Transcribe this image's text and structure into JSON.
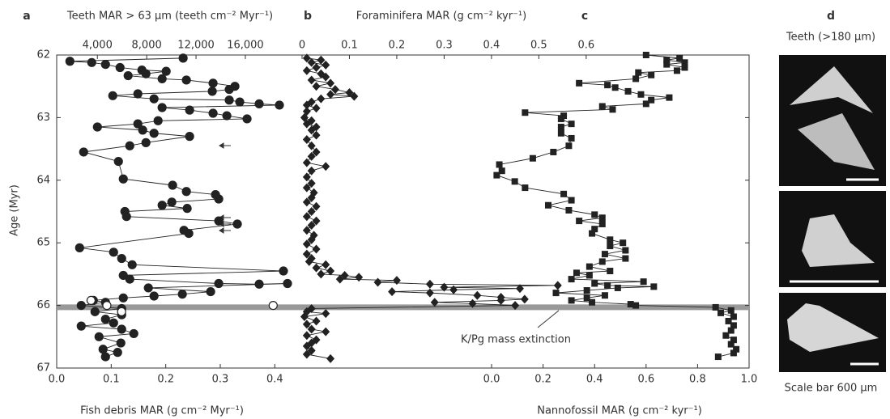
{
  "chart_data": {
    "type": "scatter",
    "ylabel": "Age (Myr)",
    "ylim": [
      62,
      67
    ],
    "yticks": [
      62,
      63,
      64,
      65,
      66,
      67
    ],
    "panel_labels": [
      "a",
      "b",
      "c",
      "d"
    ],
    "x_axes": [
      {
        "label": "Teeth MAR > 63 μm (teeth cm⁻² Myr⁻¹)",
        "position": "top",
        "xlim": [
          700,
          20600
        ],
        "xticks": [
          {
            "value": 4000,
            "label": "4,000"
          },
          {
            "value": 8000,
            "label": "8,000"
          },
          {
            "value": 12000,
            "label": "12,000"
          },
          {
            "value": 16000,
            "label": "16,000"
          }
        ]
      },
      {
        "label": "Fish debris MAR (g cm⁻² Myr⁻¹)",
        "position": "bottom",
        "xlim": [
          0,
          0.45
        ],
        "xticks": [
          {
            "value": 0,
            "label": "0.0"
          },
          0.1,
          0.2,
          0.3,
          0.4
        ]
      },
      {
        "label": "Foraminifera MAR (g cm⁻² kyr⁻¹)",
        "position": "top",
        "xlim": [
          0,
          0.944
        ],
        "xticks": [
          0,
          0.1,
          0.2,
          0.3,
          0.4,
          0.5,
          0.6
        ]
      },
      {
        "label": "Nannofossil MAR (g cm⁻² kyr⁻¹)",
        "position": "bottom",
        "xlim": [
          -0.736,
          1.0
        ],
        "xticks": [
          {
            "value": 0,
            "label": "0.0"
          },
          0.2,
          0.4,
          0.6,
          0.8,
          {
            "value": 1,
            "label": "1.0"
          }
        ]
      }
    ],
    "series": [
      {
        "x_axis": 0,
        "marker": "circle",
        "color": "#222",
        "line": true,
        "ages": [
          62.05,
          62.1,
          62.12,
          62.15,
          62.2,
          62.24,
          62.26,
          62.3,
          62.33,
          62.38,
          62.4,
          62.45,
          62.5,
          62.55,
          62.58,
          62.62,
          62.65,
          62.7,
          62.72,
          62.75,
          62.78,
          62.8,
          62.84,
          62.88,
          62.93,
          62.97,
          63.02,
          63.05,
          63.1,
          63.15,
          63.2,
          63.25,
          63.3,
          63.4,
          63.45,
          63.55,
          63.7,
          63.98,
          64.08,
          64.18,
          64.23,
          64.3,
          64.35,
          64.4,
          64.45,
          64.5,
          64.58,
          64.65,
          64.7,
          64.8,
          64.85,
          65.08,
          65.15,
          65.25,
          65.35,
          65.45,
          65.52,
          65.58,
          65.65,
          65.66,
          65.65,
          65.72,
          65.78,
          65.82,
          65.85,
          65.88,
          65.92,
          65.95,
          66.0,
          66.05,
          66.1,
          66.15,
          66.22,
          66.28,
          66.33,
          66.38,
          66.45,
          66.5,
          66.6,
          66.7,
          66.75,
          66.82
        ],
        "values": [
          10955,
          1771,
          3542,
          4658,
          5838,
          7610,
          9578,
          7938,
          6494,
          9250,
          11218,
          13382,
          15154,
          14694,
          13317,
          7282,
          5248,
          8594,
          14694,
          15547,
          17122,
          18762,
          9250,
          11480,
          13382,
          14498,
          16138,
          8922,
          7282,
          4002,
          7675,
          8594,
          11480,
          7938,
          6626,
          2886,
          5707,
          6101,
          10102,
          11218,
          13579,
          13842,
          10037,
          9250,
          11283,
          6232,
          6363,
          13842,
          15350,
          11021,
          11414,
          2558,
          5314,
          5970,
          6822,
          19090,
          6101,
          6626,
          13842,
          17122,
          19418,
          8134,
          13186,
          10890,
          8594,
          6101,
          3674,
          4658,
          2690,
          5970,
          3805,
          5970,
          4658,
          5314,
          2690,
          5970,
          6954,
          4133,
          5904,
          4461,
          5642,
          4658
        ]
      },
      {
        "x_axis": 1,
        "marker": "circle",
        "color": "#fff",
        "line": false,
        "ages": [
          65.92,
          66.0,
          66.1,
          66.0
        ],
        "values": [
          0.063,
          0.092,
          0.119,
          0.397
        ]
      },
      {
        "x_axis": 2,
        "marker": "diamond",
        "color": "#222",
        "line": true,
        "ages": [
          62.05,
          62.08,
          62.12,
          62.16,
          62.2,
          62.25,
          62.3,
          62.35,
          62.4,
          62.45,
          62.5,
          62.55,
          62.6,
          62.63,
          62.66,
          62.7,
          62.75,
          62.8,
          62.85,
          62.9,
          63.0,
          63.05,
          63.1,
          63.15,
          63.2,
          63.28,
          63.35,
          63.45,
          63.55,
          63.62,
          63.72,
          63.78,
          63.85,
          63.95,
          64.05,
          64.12,
          64.2,
          64.28,
          64.35,
          64.42,
          64.5,
          64.58,
          64.65,
          64.72,
          64.8,
          64.88,
          64.95,
          65.02,
          65.1,
          65.18,
          65.25,
          65.3,
          65.35,
          65.4,
          65.45,
          65.5,
          65.52,
          65.55,
          65.58,
          65.6,
          65.63,
          65.66,
          65.68,
          65.71,
          65.73,
          65.75,
          65.78,
          65.8,
          65.84,
          65.87,
          65.9,
          65.92,
          65.95,
          65.97,
          66.0,
          66.05,
          66.1,
          66.13,
          66.18,
          66.25,
          66.3,
          66.38,
          66.42,
          66.48,
          66.55,
          66.6,
          66.65,
          66.72,
          66.78,
          66.85
        ],
        "values": [
          0.01,
          0.04,
          0.02,
          0.05,
          0.03,
          0.01,
          0.04,
          0.05,
          0.02,
          0.06,
          0.03,
          0.07,
          0.1,
          0.06,
          0.11,
          0.04,
          0.02,
          0.01,
          0.03,
          0.01,
          0.005,
          0.02,
          0.01,
          0.03,
          0.02,
          0.03,
          0.01,
          0.02,
          0.03,
          0.02,
          0.01,
          0.05,
          0.02,
          0.01,
          0.02,
          0.01,
          0.025,
          0.02,
          0.01,
          0.03,
          0.02,
          0.01,
          0.03,
          0.02,
          0.01,
          0.025,
          0.02,
          0.01,
          0.03,
          0.01,
          0.02,
          0.015,
          0.05,
          0.03,
          0.06,
          0.04,
          0.09,
          0.12,
          0.08,
          0.2,
          0.16,
          0.27,
          0.54,
          0.3,
          0.46,
          0.32,
          0.19,
          0.27,
          0.37,
          0.42,
          0.47,
          0.42,
          0.28,
          0.36,
          0.45,
          0.02,
          0.01,
          0.05,
          0.005,
          0.03,
          0.01,
          0.02,
          0.05,
          0.01,
          0.03,
          0.02,
          0.01,
          0.02,
          0.01,
          0.06
        ]
      },
      {
        "x_axis": 3,
        "marker": "square",
        "color": "#222",
        "line": true,
        "ages": [
          62.0,
          62.05,
          62.08,
          62.12,
          62.15,
          62.2,
          62.25,
          62.28,
          62.32,
          62.38,
          62.45,
          62.48,
          62.52,
          62.58,
          62.63,
          62.68,
          62.72,
          62.78,
          62.82,
          62.87,
          62.92,
          62.97,
          63.02,
          63.1,
          63.15,
          63.25,
          63.33,
          63.45,
          63.55,
          63.65,
          63.75,
          63.85,
          63.92,
          64.02,
          64.12,
          64.22,
          64.32,
          64.4,
          64.48,
          64.55,
          64.6,
          64.65,
          64.7,
          64.78,
          64.85,
          64.95,
          65.0,
          65.05,
          65.12,
          65.18,
          65.25,
          65.3,
          65.38,
          65.45,
          65.48,
          65.52,
          65.58,
          65.62,
          65.65,
          65.68,
          65.7,
          65.72,
          65.76,
          65.8,
          65.84,
          65.88,
          65.92,
          65.95,
          65.98,
          66.0,
          66.03,
          66.08,
          66.12,
          66.18,
          66.25,
          66.32,
          66.4,
          66.48,
          66.55,
          66.62,
          66.7,
          66.76,
          66.82
        ],
        "values": [
          0.6,
          0.73,
          0.68,
          0.75,
          0.68,
          0.75,
          0.72,
          0.57,
          0.62,
          0.56,
          0.34,
          0.45,
          0.48,
          0.53,
          0.58,
          0.69,
          0.62,
          0.6,
          0.43,
          0.47,
          0.13,
          0.28,
          0.27,
          0.31,
          0.27,
          0.27,
          0.31,
          0.3,
          0.24,
          0.16,
          0.03,
          0.04,
          0.02,
          0.09,
          0.13,
          0.28,
          0.31,
          0.22,
          0.3,
          0.4,
          0.43,
          0.34,
          0.43,
          0.4,
          0.39,
          0.46,
          0.51,
          0.46,
          0.52,
          0.44,
          0.52,
          0.43,
          0.38,
          0.46,
          0.33,
          0.38,
          0.31,
          0.59,
          0.4,
          0.45,
          0.63,
          0.49,
          0.37,
          0.25,
          0.44,
          0.37,
          0.31,
          0.39,
          0.54,
          0.56,
          0.87,
          0.93,
          0.89,
          0.94,
          0.92,
          0.94,
          0.93,
          0.91,
          0.94,
          0.93,
          0.95,
          0.94,
          0.88
        ]
      }
    ],
    "extinction": {
      "age": 66.03,
      "label": "K/Pg mass extinction"
    },
    "photo_title": "Teeth (>180 μm)",
    "photo_caption": "Scale bar 600 μm"
  }
}
